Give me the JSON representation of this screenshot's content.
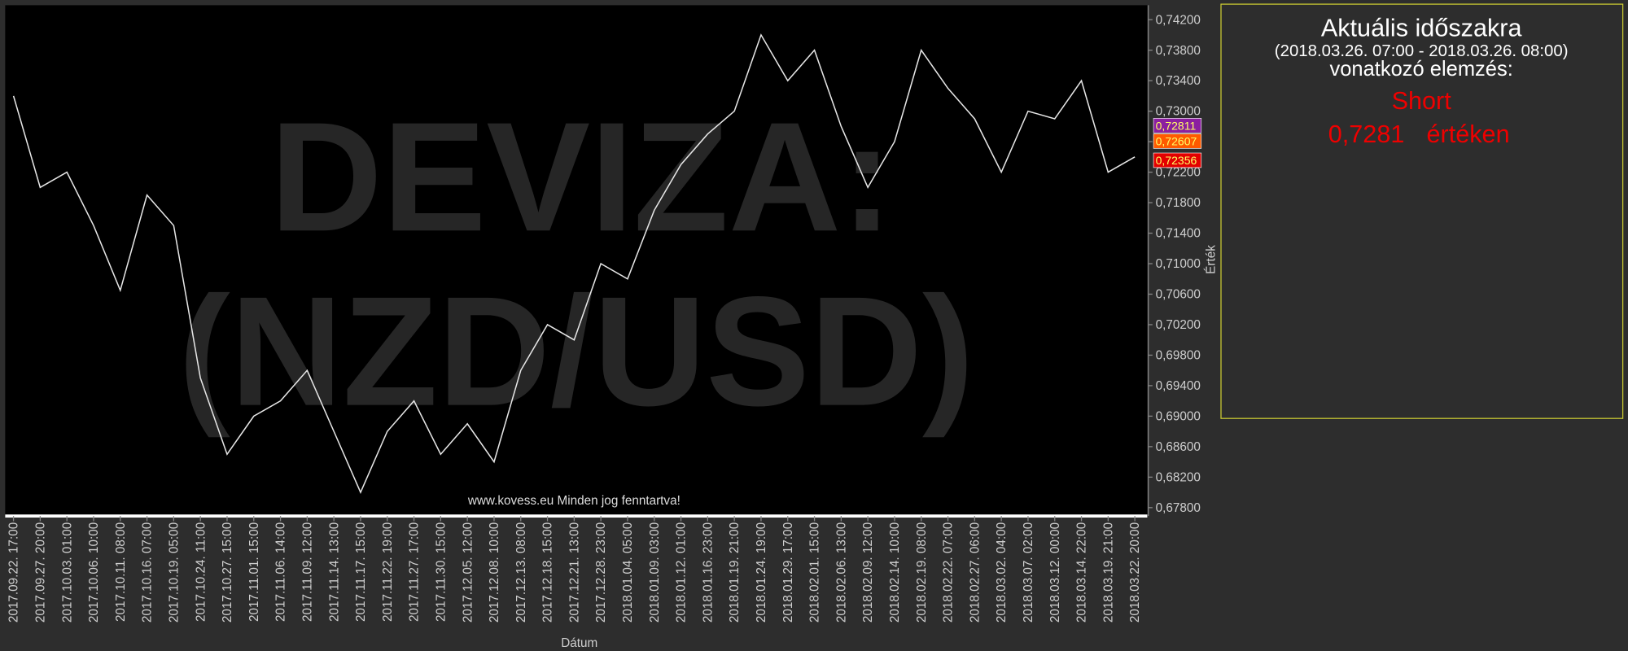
{
  "chart_data": {
    "type": "line",
    "watermark": [
      "DEVIZA:",
      "(NZD/USD)"
    ],
    "footer": "www.kovess.eu Minden jog fenntartva!",
    "x_label": "Dátum",
    "y_label": "Érték",
    "categories": [
      "2017.09.22. 17:00",
      "2017.09.27. 20:00",
      "2017.10.03. 01:00",
      "2017.10.06. 10:00",
      "2017.10.11. 08:00",
      "2017.10.16. 07:00",
      "2017.10.19. 05:00",
      "2017.10.24. 11:00",
      "2017.10.27. 15:00",
      "2017.11.01. 15:00",
      "2017.11.06. 14:00",
      "2017.11.09. 12:00",
      "2017.11.14. 13:00",
      "2017.11.17. 15:00",
      "2017.11.22. 19:00",
      "2017.11.27. 17:00",
      "2017.11.30. 15:00",
      "2017.12.05. 12:00",
      "2017.12.08. 10:00",
      "2017.12.13. 08:00",
      "2017.12.18. 15:00",
      "2017.12.21. 13:00",
      "2017.12.28. 23:00",
      "2018.01.04. 05:00",
      "2018.01.09. 03:00",
      "2018.01.12. 01:00",
      "2018.01.16. 23:00",
      "2018.01.19. 21:00",
      "2018.01.24. 19:00",
      "2018.01.29. 17:00",
      "2018.02.01. 15:00",
      "2018.02.06. 13:00",
      "2018.02.09. 12:00",
      "2018.02.14. 10:00",
      "2018.02.19. 08:00",
      "2018.02.22. 07:00",
      "2018.02.27. 06:00",
      "2018.03.02. 04:00",
      "2018.03.07. 02:00",
      "2018.03.12. 00:00",
      "2018.03.14. 22:00",
      "2018.03.19. 21:00",
      "2018.03.22. 20:00"
    ],
    "values": [
      0.732,
      0.72,
      0.722,
      0.715,
      0.7065,
      0.719,
      0.715,
      0.695,
      0.685,
      0.69,
      0.692,
      0.696,
      0.688,
      0.68,
      0.688,
      0.692,
      0.685,
      0.689,
      0.684,
      0.696,
      0.702,
      0.7,
      0.71,
      0.708,
      0.717,
      0.723,
      0.727,
      0.73,
      0.74,
      0.734,
      0.738,
      0.728,
      0.72,
      0.726,
      0.738,
      0.733,
      0.729,
      0.722,
      0.73,
      0.729,
      0.734,
      0.722,
      0.724
    ],
    "color": "#e6e6e6",
    "ylim": [
      0.6769,
      0.7439
    ],
    "yticks": [
      {
        "value": 0.678,
        "label": "0,67800"
      },
      {
        "value": 0.682,
        "label": "0,68200"
      },
      {
        "value": 0.686,
        "label": "0,68600"
      },
      {
        "value": 0.69,
        "label": "0,69000"
      },
      {
        "value": 0.694,
        "label": "0,69400"
      },
      {
        "value": 0.698,
        "label": "0,69800"
      },
      {
        "value": 0.702,
        "label": "0,70200"
      },
      {
        "value": 0.706,
        "label": "0,70600"
      },
      {
        "value": 0.71,
        "label": "0,71000"
      },
      {
        "value": 0.714,
        "label": "0,71400"
      },
      {
        "value": 0.718,
        "label": "0,71800"
      },
      {
        "value": 0.722,
        "label": "0,72200"
      },
      {
        "value": 0.726,
        "label": "0,72600"
      },
      {
        "value": 0.73,
        "label": "0,73000"
      },
      {
        "value": 0.734,
        "label": "0,73400"
      },
      {
        "value": 0.738,
        "label": "0,73800"
      },
      {
        "value": 0.742,
        "label": "0,74200"
      }
    ],
    "price_labels": [
      {
        "value": 0.72811,
        "label": "0,72811",
        "color": "#8b1fa0"
      },
      {
        "value": 0.72607,
        "label": "0,72607",
        "color": "#ff5a00"
      },
      {
        "value": 0.72356,
        "label": "0,72356",
        "color": "#e30000"
      }
    ]
  },
  "panel": {
    "title": "Aktuális időszakra",
    "period": "(2018.03.26. 07:00 - 2018.03.26. 08:00)",
    "subtitle": "vonatkozó elemzés:",
    "signal": "Short",
    "price": "0,7281",
    "price_suffix": "értéken"
  }
}
